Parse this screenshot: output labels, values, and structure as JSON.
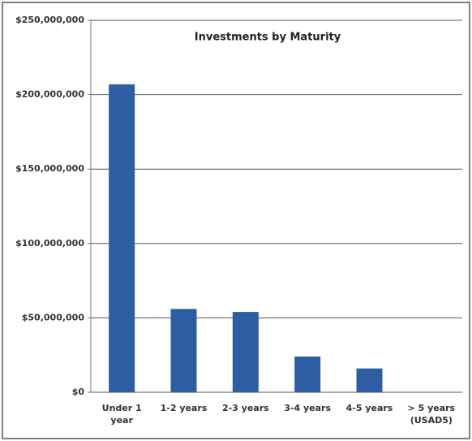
{
  "chart_data": {
    "type": "bar",
    "title": "Investments by Maturity",
    "categories": [
      "Under 1 year",
      "1-2 years",
      "2-3 years",
      "3-4 years",
      "4-5 years",
      "> 5 years (USAD5)"
    ],
    "values": [
      207000000,
      56000000,
      54000000,
      24000000,
      16000000,
      0
    ],
    "color": "#2d5ea3",
    "ylim": [
      0,
      250000000
    ],
    "yticks": [
      {
        "value": 0,
        "label": "$0"
      },
      {
        "value": 50000000,
        "label": "$50,000,000"
      },
      {
        "value": 100000000,
        "label": "$100,000,000"
      },
      {
        "value": 150000000,
        "label": "$150,000,000"
      },
      {
        "value": 200000000,
        "label": "$200,000,000"
      },
      {
        "value": 250000000,
        "label": "$250,000,000"
      }
    ],
    "grid": true
  }
}
